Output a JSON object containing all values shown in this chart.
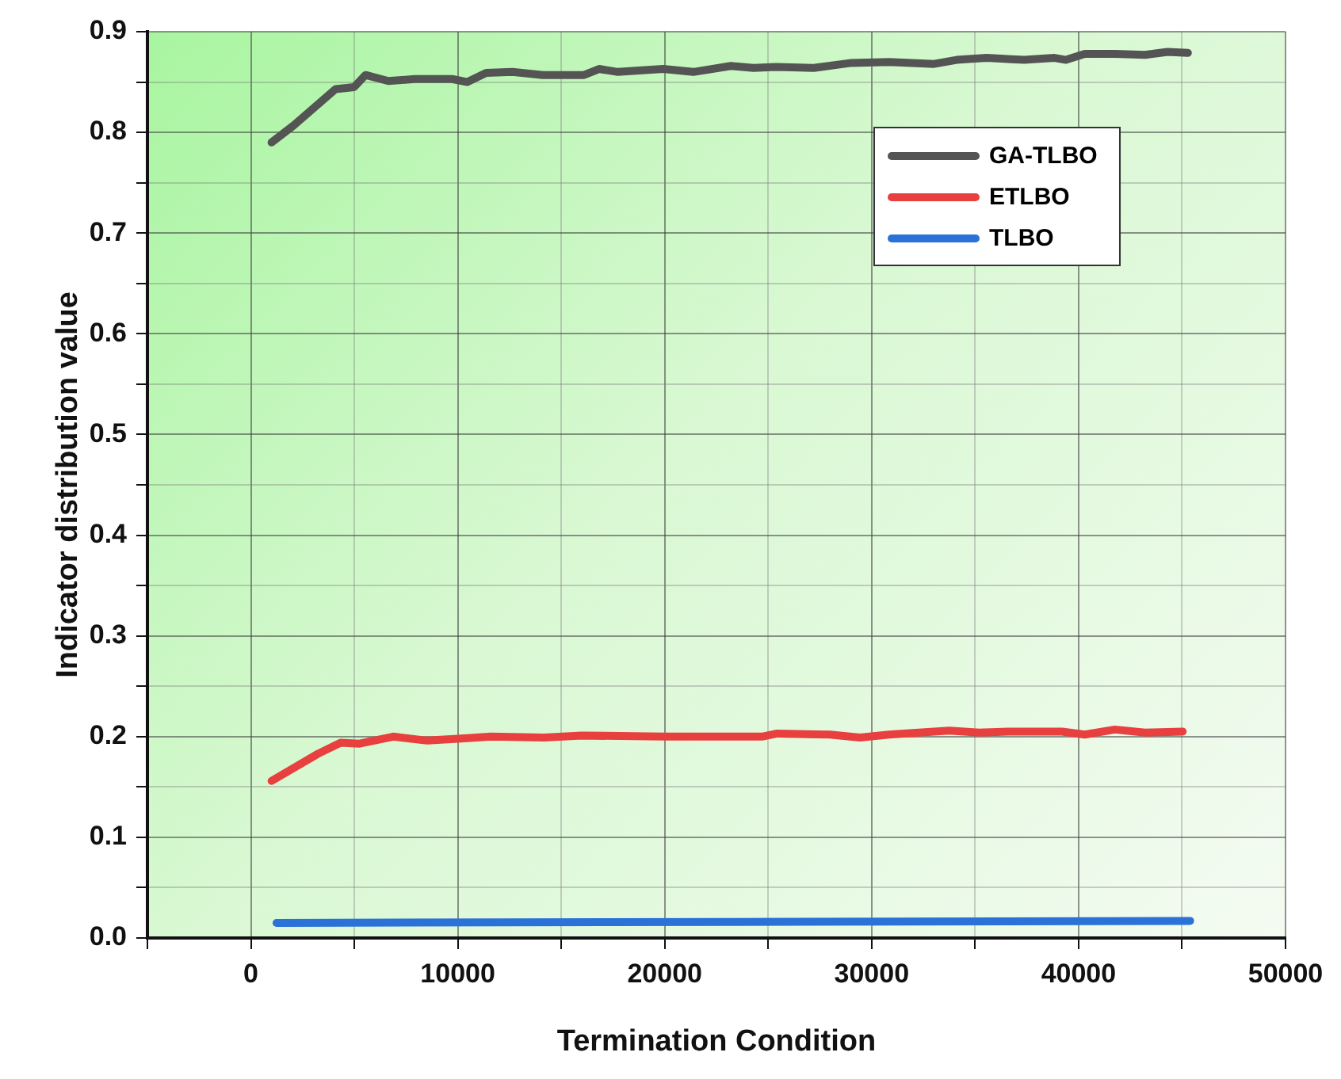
{
  "chart_data": {
    "type": "line",
    "xlabel": "Termination Condition",
    "ylabel": "Indicator distribution value",
    "xlim": [
      -5000,
      50000
    ],
    "xticks": [
      {
        "value": -5000,
        "label": null
      },
      0,
      {
        "value": 5000,
        "label": null
      },
      10000,
      {
        "value": 15000,
        "label": null
      },
      20000,
      {
        "value": 25000,
        "label": null
      },
      30000,
      {
        "value": 35000,
        "label": null
      },
      40000,
      {
        "value": 45000,
        "label": null
      },
      50000
    ],
    "ylim": [
      0,
      0.9
    ],
    "yticks": [
      "0.0",
      {
        "value": 0.05,
        "label": null
      },
      0.1,
      {
        "value": 0.15,
        "label": null
      },
      0.2,
      {
        "value": 0.25,
        "label": null
      },
      0.3,
      {
        "value": 0.35,
        "label": null
      },
      0.4,
      {
        "value": 0.45,
        "label": null
      },
      0.5,
      {
        "value": 0.55,
        "label": null
      },
      0.6,
      {
        "value": 0.65,
        "label": null
      },
      0.7,
      {
        "value": 0.75,
        "label": null
      },
      0.8,
      {
        "value": 0.85,
        "label": null
      },
      0.9
    ],
    "grid": true,
    "legend": "top right",
    "marker": "none",
    "line_style": "solid",
    "series": [
      {
        "name": "GA-TLBO",
        "color": "#545454",
        "x": [
          1000,
          2070,
          4090,
          4990,
          5540,
          6640,
          7910,
          9730,
          10460,
          11370,
          12640,
          14100,
          16100,
          16830,
          17740,
          19920,
          21380,
          23200,
          24290,
          25380,
          27200,
          29020,
          30840,
          33020,
          34110,
          35560,
          37380,
          38840,
          39390,
          40300,
          41750,
          43210,
          44300,
          45280
        ],
        "values": [
          0.79,
          0.807,
          0.843,
          0.845,
          0.857,
          0.851,
          0.853,
          0.853,
          0.85,
          0.859,
          0.86,
          0.857,
          0.857,
          0.863,
          0.86,
          0.863,
          0.86,
          0.866,
          0.864,
          0.865,
          0.864,
          0.869,
          0.87,
          0.868,
          0.872,
          0.874,
          0.872,
          0.874,
          0.872,
          0.878,
          0.878,
          0.877,
          0.88,
          0.879
        ]
      },
      {
        "name": "ETLBO",
        "color": "#e8403f",
        "x": [
          1000,
          3250,
          4340,
          5250,
          6880,
          8520,
          10160,
          11610,
          14160,
          15980,
          19980,
          24700,
          25430,
          27980,
          29430,
          30840,
          33750,
          35200,
          36660,
          39200,
          40300,
          41750,
          43210,
          45030
        ],
        "values": [
          0.156,
          0.183,
          0.194,
          0.193,
          0.2,
          0.196,
          0.198,
          0.2,
          0.199,
          0.201,
          0.2,
          0.2,
          0.203,
          0.202,
          0.199,
          0.202,
          0.206,
          0.204,
          0.205,
          0.205,
          0.202,
          0.207,
          0.204,
          0.205
        ]
      },
      {
        "name": "TLBO",
        "color": "#2a72d8",
        "x": [
          1240,
          23570,
          45390
        ],
        "values": [
          0.015,
          0.016,
          0.017
        ]
      }
    ]
  }
}
